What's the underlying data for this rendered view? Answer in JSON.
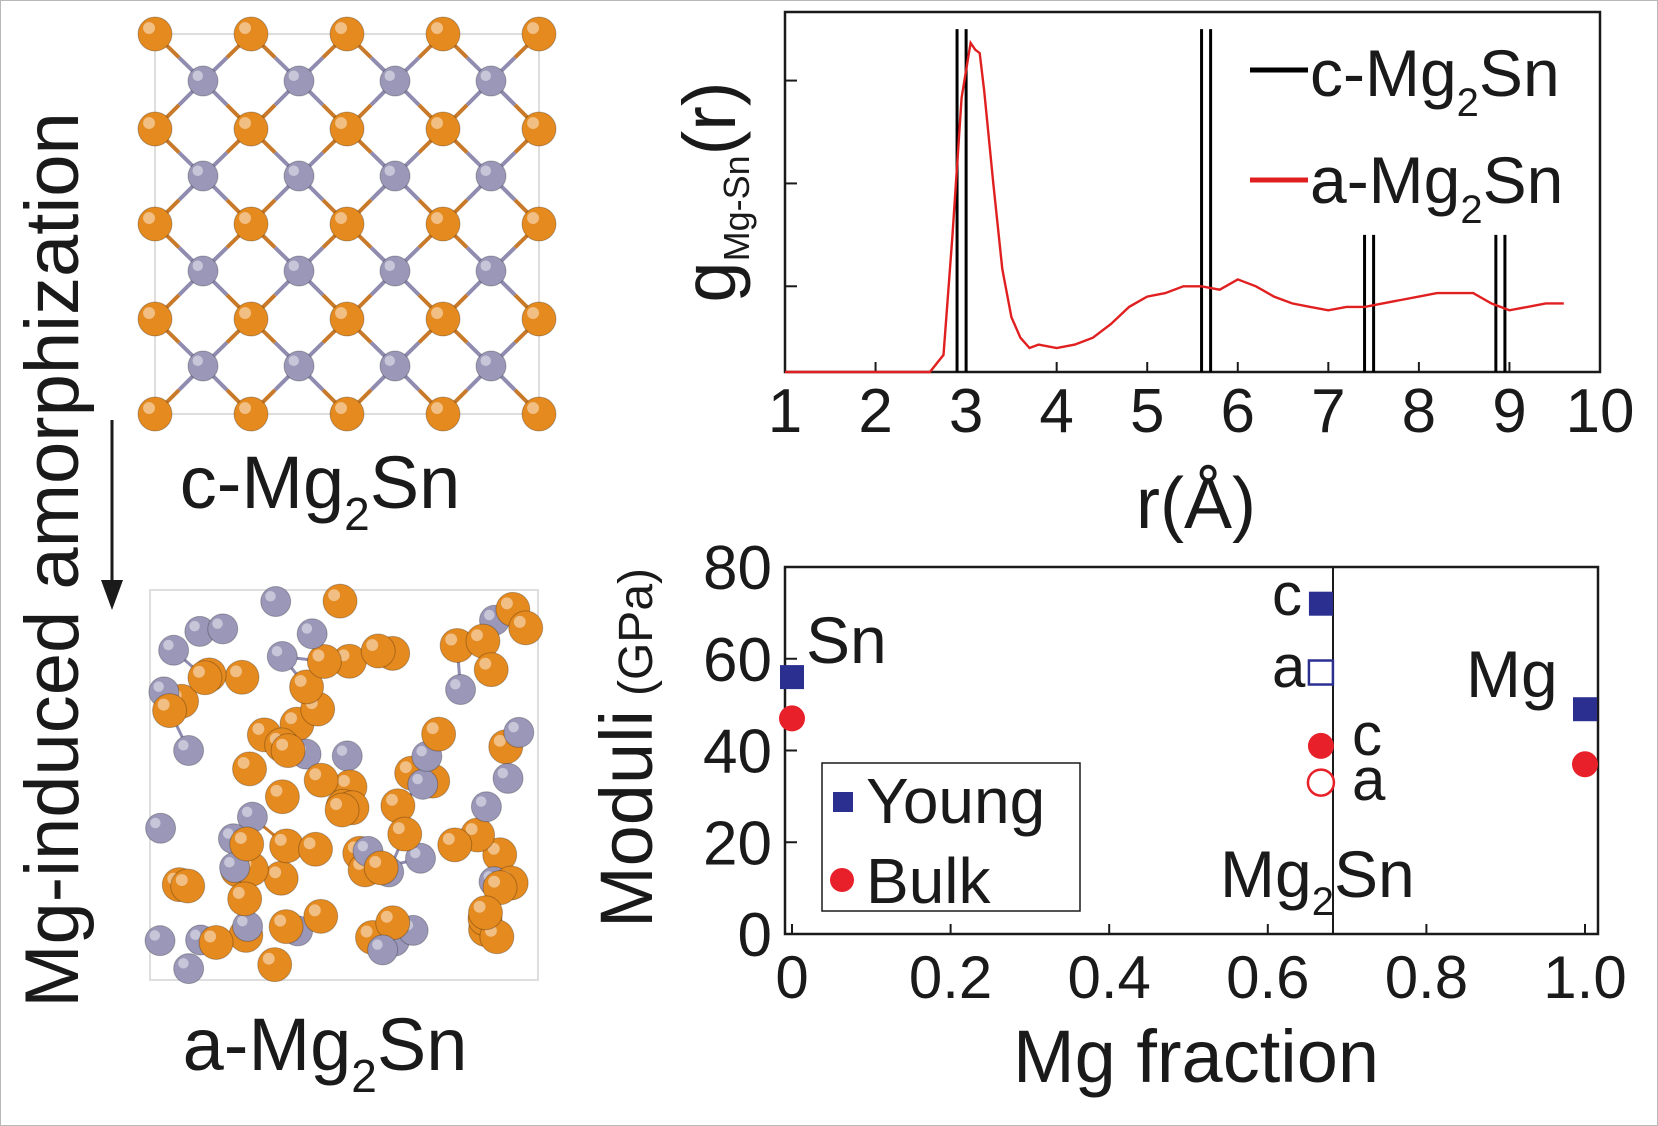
{
  "left_panel": {
    "side_label": "Mg-induced amorphization",
    "crystal_label": {
      "prefix": "c-Mg",
      "sub": "2",
      "suffix": "Sn"
    },
    "amorphous_label": {
      "prefix": "a-Mg",
      "sub": "2",
      "suffix": "Sn"
    },
    "colors": {
      "sn_atom": "#e58a1f",
      "mg_atom": "#9a97b8",
      "bond_sn": "#c87a2a",
      "bond_mg": "#8f8cb0"
    }
  },
  "chart_data": [
    {
      "type": "line",
      "ylabel": {
        "main": "g",
        "sub": "Mg-Sn",
        "tail": "(r)"
      },
      "xlabel": "r(Å)",
      "xlim": [
        1,
        10
      ],
      "x_ticks": [
        "1",
        "2",
        "3",
        "4",
        "5",
        "6",
        "7",
        "8",
        "9",
        "10"
      ],
      "legend": {
        "placement": "top-right",
        "entries": [
          {
            "prefix": "c-Mg",
            "sub": "2",
            "suffix": "Sn",
            "color": "#000000"
          },
          {
            "prefix": "a-Mg",
            "sub": "2",
            "suffix": "Sn",
            "color": "#e02020"
          }
        ]
      },
      "crystalline_peaks": [
        {
          "x": [
            2.9,
            3.0
          ],
          "height": 1.0
        },
        {
          "x": [
            5.6,
            5.7
          ],
          "height": 1.0
        },
        {
          "x": [
            7.4,
            7.5
          ],
          "height": 0.4
        },
        {
          "x": [
            8.85,
            8.95
          ],
          "height": 0.4
        }
      ],
      "series": [
        {
          "x": [
            1.0,
            2.6,
            2.75,
            2.85,
            2.95,
            3.05,
            3.1,
            3.15,
            3.2,
            3.3,
            3.4,
            3.5,
            3.6,
            3.7,
            3.8,
            4.0,
            4.2,
            4.4,
            4.6,
            4.8,
            5.0,
            5.2,
            5.4,
            5.6,
            5.8,
            6.0,
            6.2,
            6.4,
            6.6,
            6.8,
            7.0,
            7.2,
            7.4,
            7.6,
            7.8,
            8.0,
            8.2,
            8.4,
            8.6,
            8.8,
            9.0,
            9.2,
            9.4,
            9.6
          ],
          "values": [
            0.0,
            0.0,
            0.05,
            0.4,
            0.8,
            0.96,
            0.94,
            0.93,
            0.82,
            0.55,
            0.3,
            0.16,
            0.1,
            0.07,
            0.08,
            0.07,
            0.08,
            0.1,
            0.14,
            0.19,
            0.22,
            0.23,
            0.25,
            0.25,
            0.24,
            0.27,
            0.25,
            0.22,
            0.2,
            0.19,
            0.18,
            0.19,
            0.19,
            0.2,
            0.21,
            0.22,
            0.23,
            0.23,
            0.23,
            0.2,
            0.18,
            0.19,
            0.2,
            0.2
          ]
        }
      ],
      "ylim": [
        0,
        1.05
      ],
      "y_ticks": [
        0.25,
        0.55,
        0.85
      ]
    },
    {
      "type": "scatter",
      "ylabel": {
        "main": "Moduli",
        "unit": "(GPa)"
      },
      "xlabel": "Mg fraction",
      "xlim": [
        0,
        1
      ],
      "ylim": [
        0,
        80
      ],
      "x_ticks": [
        "0",
        "0.2",
        "0.4",
        "0.6",
        "0.8",
        "1.0"
      ],
      "y_ticks": [
        "0",
        "20",
        "40",
        "60",
        "80"
      ],
      "legend": {
        "placement": "bottom-left",
        "entries": [
          "Young",
          "Bulk"
        ]
      },
      "series": [
        {
          "name": "Young",
          "marker": "square",
          "color": "#2b2f8f",
          "points": [
            {
              "x": 0,
              "y": 56,
              "filled": true
            },
            {
              "x": 0.667,
              "y": 72,
              "filled": true
            },
            {
              "x": 0.667,
              "y": 57,
              "filled": false
            },
            {
              "x": 1,
              "y": 49,
              "filled": true
            }
          ]
        },
        {
          "name": "Bulk",
          "marker": "circle",
          "color": "#e8202a",
          "points": [
            {
              "x": 0,
              "y": 47,
              "filled": true
            },
            {
              "x": 0.667,
              "y": 41,
              "filled": true
            },
            {
              "x": 0.667,
              "y": 33,
              "filled": false
            },
            {
              "x": 1,
              "y": 37,
              "filled": true
            }
          ]
        }
      ],
      "annotations": {
        "sn": "Sn",
        "mg": "Mg",
        "mg2sn": {
          "prefix": "Mg",
          "sub": "2",
          "suffix": "Sn"
        },
        "young_c": "c",
        "young_a": "a",
        "bulk_c": "c",
        "bulk_a": "a"
      }
    }
  ]
}
